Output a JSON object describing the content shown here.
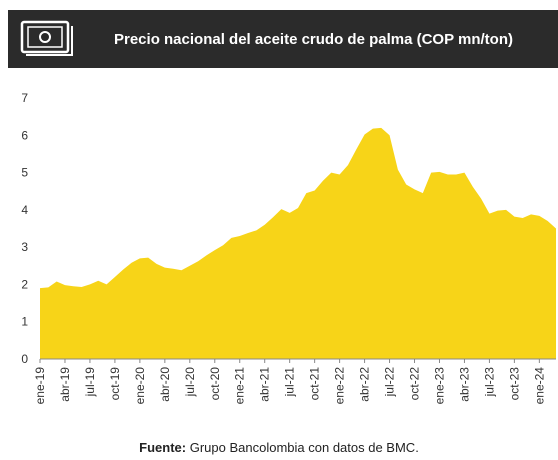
{
  "header": {
    "title": "Precio nacional del aceite crudo de palma (COP mn/ton)",
    "icon": "money-bill-icon"
  },
  "footer": {
    "source_label": "Fuente:",
    "source_text": " Grupo Bancolombia con datos de BMC."
  },
  "colors": {
    "header_bg": "#2b2b2b",
    "area_fill": "#f7d418",
    "icon": "#ffffff"
  },
  "chart_data": {
    "type": "area",
    "title": "Precio nacional del aceite crudo de palma (COP mn/ton)",
    "xlabel": "",
    "ylabel": "",
    "ylim": [
      0,
      7
    ],
    "yticks": [
      0,
      1,
      2,
      3,
      4,
      5,
      6,
      7
    ],
    "grid": false,
    "legend": "none",
    "x_tick_labels": [
      "ene-19",
      "abr-19",
      "jul-19",
      "oct-19",
      "ene-20",
      "abr-20",
      "jul-20",
      "oct-20",
      "ene-21",
      "abr-21",
      "jul-21",
      "oct-21",
      "ene-22",
      "abr-22",
      "jul-22",
      "oct-22",
      "ene-23",
      "abr-23",
      "jul-23",
      "oct-23",
      "ene-24"
    ],
    "x": [
      "ene-19",
      "feb-19",
      "mar-19",
      "abr-19",
      "may-19",
      "jun-19",
      "jul-19",
      "ago-19",
      "sep-19",
      "oct-19",
      "nov-19",
      "dic-19",
      "ene-20",
      "feb-20",
      "mar-20",
      "abr-20",
      "may-20",
      "jun-20",
      "jul-20",
      "ago-20",
      "sep-20",
      "oct-20",
      "nov-20",
      "dic-20",
      "ene-21",
      "feb-21",
      "mar-21",
      "abr-21",
      "may-21",
      "jun-21",
      "jul-21",
      "ago-21",
      "sep-21",
      "oct-21",
      "nov-21",
      "dic-21",
      "ene-22",
      "feb-22",
      "mar-22",
      "abr-22",
      "may-22",
      "jun-22",
      "jul-22",
      "ago-22",
      "sep-22",
      "oct-22",
      "nov-22",
      "dic-22",
      "ene-23",
      "feb-23",
      "mar-23",
      "abr-23",
      "may-23",
      "jun-23",
      "jul-23",
      "ago-23",
      "sep-23",
      "oct-23",
      "nov-23",
      "dic-23",
      "ene-24",
      "feb-24",
      "mar-24"
    ],
    "values": [
      1.9,
      1.92,
      2.08,
      1.98,
      1.95,
      1.93,
      2.0,
      2.1,
      2.0,
      2.2,
      2.4,
      2.58,
      2.7,
      2.72,
      2.55,
      2.45,
      2.42,
      2.38,
      2.5,
      2.62,
      2.78,
      2.92,
      3.05,
      3.25,
      3.3,
      3.38,
      3.45,
      3.6,
      3.8,
      4.02,
      3.92,
      4.05,
      4.45,
      4.52,
      4.78,
      5.0,
      4.95,
      5.2,
      5.62,
      6.02,
      6.18,
      6.2,
      6.0,
      5.08,
      4.68,
      4.55,
      4.45,
      5.0,
      5.02,
      4.95,
      4.95,
      5.0,
      4.62,
      4.3,
      3.9,
      3.98,
      4.0,
      3.82,
      3.78,
      3.88,
      3.84,
      3.7,
      3.5
    ]
  }
}
